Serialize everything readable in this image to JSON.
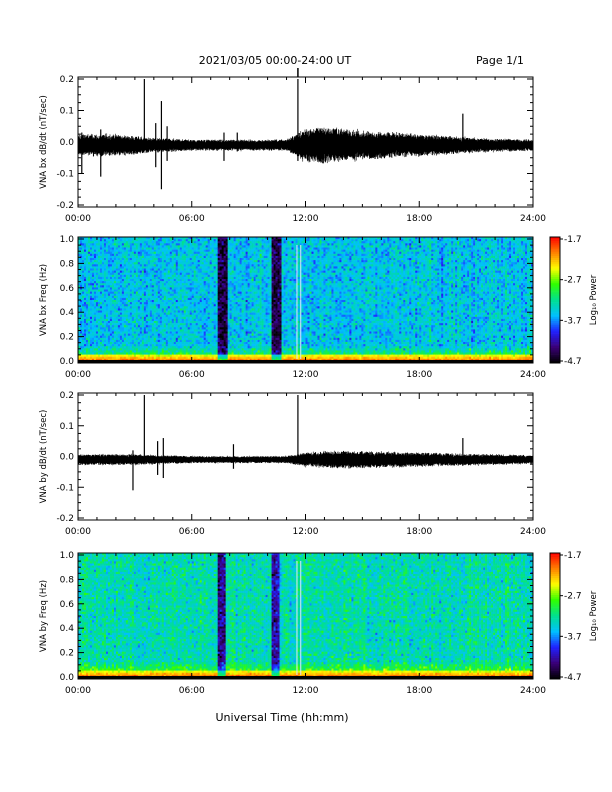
{
  "header": {
    "title": "2021/03/05  00:00-24:00 UT",
    "page": "Page 1/1"
  },
  "x_axis": {
    "ticks": [
      "00:00",
      "06:00",
      "12:00",
      "18:00",
      "24:00"
    ],
    "label": "Universal Time (hh:mm)"
  },
  "colorbar": {
    "label": "Log₁₀ Power",
    "ticks": [
      "-1.7",
      "-2.7",
      "-3.7",
      "-4.7"
    ],
    "colors": [
      "#000000",
      "#3a0078",
      "#2020ff",
      "#00c0ff",
      "#00e090",
      "#30ff00",
      "#ffff00",
      "#ff8000",
      "#ff0000"
    ]
  },
  "chart_data": [
    {
      "type": "line",
      "name": "bx-waveform",
      "ylabel": "VNA bx dB/dt (nT/sec)",
      "xlim": [
        0,
        24
      ],
      "ylim": [
        -0.2,
        0.2
      ],
      "yticks": [
        "0.2",
        "0.1",
        "0.0",
        "-0.1",
        "-0.2"
      ],
      "baseline": -0.01,
      "envelope": [
        {
          "hour": 0.0,
          "half": 0.03
        },
        {
          "hour": 2.0,
          "half": 0.03
        },
        {
          "hour": 4.0,
          "half": 0.02
        },
        {
          "hour": 6.0,
          "half": 0.015
        },
        {
          "hour": 9.0,
          "half": 0.015
        },
        {
          "hour": 11.0,
          "half": 0.015
        },
        {
          "hour": 12.0,
          "half": 0.045
        },
        {
          "hour": 13.0,
          "half": 0.05
        },
        {
          "hour": 15.0,
          "half": 0.04
        },
        {
          "hour": 18.0,
          "half": 0.03
        },
        {
          "hour": 21.0,
          "half": 0.02
        },
        {
          "hour": 24.0,
          "half": 0.015
        }
      ],
      "spikes": [
        {
          "hour": 0.2,
          "low": -0.1,
          "high": 0.03
        },
        {
          "hour": 1.2,
          "low": -0.11,
          "high": 0.04
        },
        {
          "hour": 3.5,
          "low": -0.02,
          "high": 0.2
        },
        {
          "hour": 4.1,
          "low": -0.08,
          "high": 0.06
        },
        {
          "hour": 4.4,
          "low": -0.15,
          "high": 0.13
        },
        {
          "hour": 4.7,
          "low": -0.06,
          "high": 0.05
        },
        {
          "hour": 7.7,
          "low": -0.06,
          "high": 0.03
        },
        {
          "hour": 8.4,
          "low": -0.03,
          "high": 0.03
        },
        {
          "hour": 11.6,
          "low": -0.06,
          "high": 0.2
        },
        {
          "hour": 20.3,
          "low": -0.03,
          "high": 0.09
        }
      ]
    },
    {
      "type": "heatmap",
      "name": "bx-spectrogram",
      "ylabel": "VNA bx Freq (Hz)",
      "xlim": [
        0,
        24
      ],
      "ylim": [
        0.0,
        1.0
      ],
      "yticks": [
        "1.0",
        "0.8",
        "0.6",
        "0.4",
        "0.2",
        "0.0"
      ],
      "zlim": [
        -4.7,
        -1.7
      ],
      "background_log_power": -3.5,
      "low_freq_log_power": -2.5,
      "dark_bands_hours": [
        [
          7.4,
          7.9
        ],
        [
          10.2,
          10.7
        ]
      ],
      "gap_lines_hours": [
        11.55,
        11.75
      ]
    },
    {
      "type": "line",
      "name": "by-waveform",
      "ylabel": "VNA by dB/dt (nT/sec)",
      "xlim": [
        0,
        24
      ],
      "ylim": [
        -0.2,
        0.2
      ],
      "yticks": [
        "0.2",
        "0.1",
        "0.0",
        "-0.1",
        "-0.2"
      ],
      "baseline": -0.01,
      "envelope": [
        {
          "hour": 0.0,
          "half": 0.015
        },
        {
          "hour": 3.0,
          "half": 0.015
        },
        {
          "hour": 6.0,
          "half": 0.01
        },
        {
          "hour": 9.0,
          "half": 0.01
        },
        {
          "hour": 11.0,
          "half": 0.01
        },
        {
          "hour": 12.0,
          "half": 0.02
        },
        {
          "hour": 14.0,
          "half": 0.025
        },
        {
          "hour": 18.0,
          "half": 0.02
        },
        {
          "hour": 24.0,
          "half": 0.012
        }
      ],
      "spikes": [
        {
          "hour": 2.9,
          "low": -0.11,
          "high": 0.02
        },
        {
          "hour": 3.5,
          "low": -0.02,
          "high": 0.2
        },
        {
          "hour": 4.2,
          "low": -0.06,
          "high": 0.05
        },
        {
          "hour": 4.5,
          "low": -0.07,
          "high": 0.06
        },
        {
          "hour": 8.2,
          "low": -0.04,
          "high": 0.04
        },
        {
          "hour": 11.6,
          "low": -0.02,
          "high": 0.2
        },
        {
          "hour": 20.3,
          "low": -0.03,
          "high": 0.06
        }
      ]
    },
    {
      "type": "heatmap",
      "name": "by-spectrogram",
      "ylabel": "VNA by Freq (Hz)",
      "xlim": [
        0,
        24
      ],
      "ylim": [
        0.0,
        1.0
      ],
      "yticks": [
        "1.0",
        "0.8",
        "0.6",
        "0.4",
        "0.2",
        "0.0"
      ],
      "zlim": [
        -4.7,
        -1.7
      ],
      "background_log_power": -3.3,
      "low_freq_log_power": -2.5,
      "dark_bands_hours": [
        [
          7.4,
          7.8
        ],
        [
          10.2,
          10.6
        ]
      ],
      "gap_lines_hours": [
        11.55,
        11.75
      ]
    }
  ]
}
